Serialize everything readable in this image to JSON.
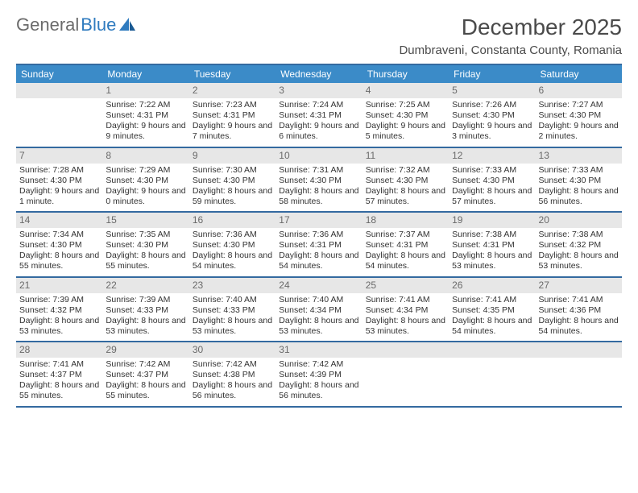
{
  "brand": {
    "part1": "General",
    "part2": "Blue"
  },
  "title": "December 2025",
  "location": "Dumbraveni, Constanta County, Romania",
  "colors": {
    "header_bg": "#3b8bc8",
    "border": "#346aa0",
    "daynum_bg": "#e7e7e7",
    "text": "#333333",
    "brand_gray": "#6b6b6b",
    "brand_blue": "#2f7bbf"
  },
  "daysOfWeek": [
    "Sunday",
    "Monday",
    "Tuesday",
    "Wednesday",
    "Thursday",
    "Friday",
    "Saturday"
  ],
  "weeks": [
    [
      {
        "num": "",
        "sunrise": "",
        "sunset": "",
        "daylight": ""
      },
      {
        "num": "1",
        "sunrise": "Sunrise: 7:22 AM",
        "sunset": "Sunset: 4:31 PM",
        "daylight": "Daylight: 9 hours and 9 minutes."
      },
      {
        "num": "2",
        "sunrise": "Sunrise: 7:23 AM",
        "sunset": "Sunset: 4:31 PM",
        "daylight": "Daylight: 9 hours and 7 minutes."
      },
      {
        "num": "3",
        "sunrise": "Sunrise: 7:24 AM",
        "sunset": "Sunset: 4:31 PM",
        "daylight": "Daylight: 9 hours and 6 minutes."
      },
      {
        "num": "4",
        "sunrise": "Sunrise: 7:25 AM",
        "sunset": "Sunset: 4:30 PM",
        "daylight": "Daylight: 9 hours and 5 minutes."
      },
      {
        "num": "5",
        "sunrise": "Sunrise: 7:26 AM",
        "sunset": "Sunset: 4:30 PM",
        "daylight": "Daylight: 9 hours and 3 minutes."
      },
      {
        "num": "6",
        "sunrise": "Sunrise: 7:27 AM",
        "sunset": "Sunset: 4:30 PM",
        "daylight": "Daylight: 9 hours and 2 minutes."
      }
    ],
    [
      {
        "num": "7",
        "sunrise": "Sunrise: 7:28 AM",
        "sunset": "Sunset: 4:30 PM",
        "daylight": "Daylight: 9 hours and 1 minute."
      },
      {
        "num": "8",
        "sunrise": "Sunrise: 7:29 AM",
        "sunset": "Sunset: 4:30 PM",
        "daylight": "Daylight: 9 hours and 0 minutes."
      },
      {
        "num": "9",
        "sunrise": "Sunrise: 7:30 AM",
        "sunset": "Sunset: 4:30 PM",
        "daylight": "Daylight: 8 hours and 59 minutes."
      },
      {
        "num": "10",
        "sunrise": "Sunrise: 7:31 AM",
        "sunset": "Sunset: 4:30 PM",
        "daylight": "Daylight: 8 hours and 58 minutes."
      },
      {
        "num": "11",
        "sunrise": "Sunrise: 7:32 AM",
        "sunset": "Sunset: 4:30 PM",
        "daylight": "Daylight: 8 hours and 57 minutes."
      },
      {
        "num": "12",
        "sunrise": "Sunrise: 7:33 AM",
        "sunset": "Sunset: 4:30 PM",
        "daylight": "Daylight: 8 hours and 57 minutes."
      },
      {
        "num": "13",
        "sunrise": "Sunrise: 7:33 AM",
        "sunset": "Sunset: 4:30 PM",
        "daylight": "Daylight: 8 hours and 56 minutes."
      }
    ],
    [
      {
        "num": "14",
        "sunrise": "Sunrise: 7:34 AM",
        "sunset": "Sunset: 4:30 PM",
        "daylight": "Daylight: 8 hours and 55 minutes."
      },
      {
        "num": "15",
        "sunrise": "Sunrise: 7:35 AM",
        "sunset": "Sunset: 4:30 PM",
        "daylight": "Daylight: 8 hours and 55 minutes."
      },
      {
        "num": "16",
        "sunrise": "Sunrise: 7:36 AM",
        "sunset": "Sunset: 4:30 PM",
        "daylight": "Daylight: 8 hours and 54 minutes."
      },
      {
        "num": "17",
        "sunrise": "Sunrise: 7:36 AM",
        "sunset": "Sunset: 4:31 PM",
        "daylight": "Daylight: 8 hours and 54 minutes."
      },
      {
        "num": "18",
        "sunrise": "Sunrise: 7:37 AM",
        "sunset": "Sunset: 4:31 PM",
        "daylight": "Daylight: 8 hours and 54 minutes."
      },
      {
        "num": "19",
        "sunrise": "Sunrise: 7:38 AM",
        "sunset": "Sunset: 4:31 PM",
        "daylight": "Daylight: 8 hours and 53 minutes."
      },
      {
        "num": "20",
        "sunrise": "Sunrise: 7:38 AM",
        "sunset": "Sunset: 4:32 PM",
        "daylight": "Daylight: 8 hours and 53 minutes."
      }
    ],
    [
      {
        "num": "21",
        "sunrise": "Sunrise: 7:39 AM",
        "sunset": "Sunset: 4:32 PM",
        "daylight": "Daylight: 8 hours and 53 minutes."
      },
      {
        "num": "22",
        "sunrise": "Sunrise: 7:39 AM",
        "sunset": "Sunset: 4:33 PM",
        "daylight": "Daylight: 8 hours and 53 minutes."
      },
      {
        "num": "23",
        "sunrise": "Sunrise: 7:40 AM",
        "sunset": "Sunset: 4:33 PM",
        "daylight": "Daylight: 8 hours and 53 minutes."
      },
      {
        "num": "24",
        "sunrise": "Sunrise: 7:40 AM",
        "sunset": "Sunset: 4:34 PM",
        "daylight": "Daylight: 8 hours and 53 minutes."
      },
      {
        "num": "25",
        "sunrise": "Sunrise: 7:41 AM",
        "sunset": "Sunset: 4:34 PM",
        "daylight": "Daylight: 8 hours and 53 minutes."
      },
      {
        "num": "26",
        "sunrise": "Sunrise: 7:41 AM",
        "sunset": "Sunset: 4:35 PM",
        "daylight": "Daylight: 8 hours and 54 minutes."
      },
      {
        "num": "27",
        "sunrise": "Sunrise: 7:41 AM",
        "sunset": "Sunset: 4:36 PM",
        "daylight": "Daylight: 8 hours and 54 minutes."
      }
    ],
    [
      {
        "num": "28",
        "sunrise": "Sunrise: 7:41 AM",
        "sunset": "Sunset: 4:37 PM",
        "daylight": "Daylight: 8 hours and 55 minutes."
      },
      {
        "num": "29",
        "sunrise": "Sunrise: 7:42 AM",
        "sunset": "Sunset: 4:37 PM",
        "daylight": "Daylight: 8 hours and 55 minutes."
      },
      {
        "num": "30",
        "sunrise": "Sunrise: 7:42 AM",
        "sunset": "Sunset: 4:38 PM",
        "daylight": "Daylight: 8 hours and 56 minutes."
      },
      {
        "num": "31",
        "sunrise": "Sunrise: 7:42 AM",
        "sunset": "Sunset: 4:39 PM",
        "daylight": "Daylight: 8 hours and 56 minutes."
      },
      {
        "num": "",
        "sunrise": "",
        "sunset": "",
        "daylight": ""
      },
      {
        "num": "",
        "sunrise": "",
        "sunset": "",
        "daylight": ""
      },
      {
        "num": "",
        "sunrise": "",
        "sunset": "",
        "daylight": ""
      }
    ]
  ]
}
